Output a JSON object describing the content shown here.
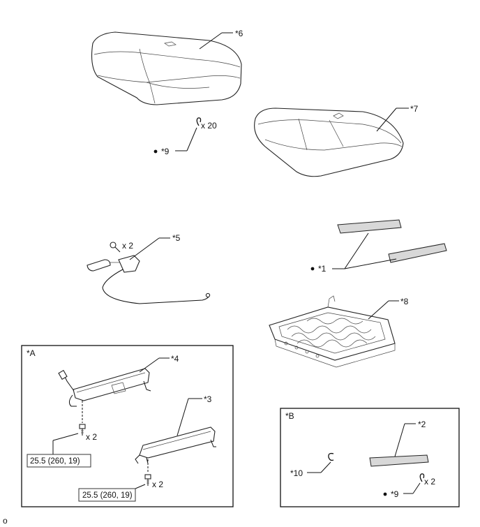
{
  "callouts": {
    "p6": "*6",
    "p7": "*7",
    "p5": "*5",
    "p1": "*1",
    "p8": "*8",
    "p4": "*4",
    "p3": "*3",
    "p2": "*2",
    "p9_top": "*9",
    "p9_box": "*9",
    "p10": "*10"
  },
  "quantities": {
    "hog_rings_top": "x 20",
    "screws_5": "x 2",
    "bolts_4": "x 2",
    "bolts_3": "x 2",
    "hog_rings_box": "x 2"
  },
  "torque": {
    "spec_4": "25.5 (260, 19)",
    "spec_3": "25.5 (260, 19)"
  },
  "boxes": {
    "a": "*A",
    "b": "*B"
  },
  "footer": {
    "mark": "o"
  }
}
